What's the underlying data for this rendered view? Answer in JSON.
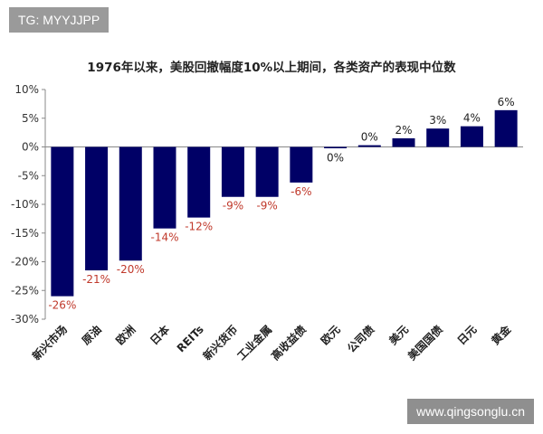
{
  "watermark": {
    "label": "TG: MYYJJPP"
  },
  "footer": {
    "site": "www.qingsonglu.cn"
  },
  "colors": {
    "bar": "#000066",
    "negative_label": "#c0392b",
    "positive_label": "#222222",
    "axis": "#888888"
  },
  "chart_data": {
    "type": "bar",
    "title": "1976年以来，美股回撤幅度10%以上期间，各类资产的表现中位数",
    "xlabel": "",
    "ylabel": "",
    "ylim": [
      -30,
      10
    ],
    "yticks": [
      "10%",
      "5%",
      "0%",
      "-5%",
      "-10%",
      "-15%",
      "-20%",
      "-25%",
      "-30%"
    ],
    "ytick_values": [
      10,
      5,
      0,
      -5,
      -10,
      -15,
      -20,
      -25,
      -30
    ],
    "grid": false,
    "legend": "none",
    "categories": [
      "新兴市场",
      "原油",
      "欧洲",
      "日本",
      "REITs",
      "新兴货币",
      "工业金属",
      "高收益债",
      "欧元",
      "公司债",
      "美元",
      "美国国债",
      "日元",
      "黄金"
    ],
    "values": [
      -26,
      -21.5,
      -19.8,
      -14.2,
      -12.3,
      -8.7,
      -8.7,
      -6.2,
      -0.1,
      0.3,
      1.5,
      3.2,
      3.6,
      6.4
    ],
    "data_labels": [
      "-26%",
      "-21%",
      "-20%",
      "-14%",
      "-12%",
      "-9%",
      "-9%",
      "-6%",
      "0%",
      "0%",
      "2%",
      "3%",
      "4%",
      "6%"
    ]
  }
}
